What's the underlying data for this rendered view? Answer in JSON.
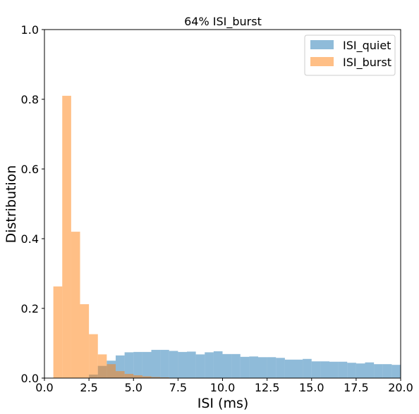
{
  "chart_data": {
    "type": "bar",
    "title": "64% ISI_burst",
    "xlabel": "ISI (ms)",
    "ylabel": "Distribution",
    "xlim": [
      0,
      20
    ],
    "ylim": [
      0,
      1.0
    ],
    "xticks": [
      "0.0",
      "2.5",
      "5.0",
      "7.5",
      "10.0",
      "12.5",
      "15.0",
      "17.5",
      "20.0"
    ],
    "yticks": [
      "0.0",
      "0.2",
      "0.4",
      "0.6",
      "0.8",
      "1.0"
    ],
    "grid": false,
    "legend_position": "top-right",
    "series": [
      {
        "name": "ISI_quiet",
        "color": "#1f77b4",
        "alpha": 0.5,
        "bin_width": 0.5,
        "bins": [
          {
            "x0": 2.5,
            "value": 0.01
          },
          {
            "x0": 3.0,
            "value": 0.035
          },
          {
            "x0": 3.5,
            "value": 0.05
          },
          {
            "x0": 4.0,
            "value": 0.065
          },
          {
            "x0": 4.5,
            "value": 0.074
          },
          {
            "x0": 5.0,
            "value": 0.075
          },
          {
            "x0": 5.5,
            "value": 0.075
          },
          {
            "x0": 6.0,
            "value": 0.081
          },
          {
            "x0": 6.5,
            "value": 0.081
          },
          {
            "x0": 7.0,
            "value": 0.078
          },
          {
            "x0": 7.5,
            "value": 0.075
          },
          {
            "x0": 8.0,
            "value": 0.076
          },
          {
            "x0": 8.5,
            "value": 0.068
          },
          {
            "x0": 9.0,
            "value": 0.074
          },
          {
            "x0": 9.5,
            "value": 0.077
          },
          {
            "x0": 10.0,
            "value": 0.069
          },
          {
            "x0": 10.5,
            "value": 0.069
          },
          {
            "x0": 11.0,
            "value": 0.061
          },
          {
            "x0": 11.5,
            "value": 0.062
          },
          {
            "x0": 12.0,
            "value": 0.06
          },
          {
            "x0": 12.5,
            "value": 0.06
          },
          {
            "x0": 13.0,
            "value": 0.058
          },
          {
            "x0": 13.5,
            "value": 0.053
          },
          {
            "x0": 14.0,
            "value": 0.053
          },
          {
            "x0": 14.5,
            "value": 0.055
          },
          {
            "x0": 15.0,
            "value": 0.048
          },
          {
            "x0": 15.5,
            "value": 0.048
          },
          {
            "x0": 16.0,
            "value": 0.047
          },
          {
            "x0": 16.5,
            "value": 0.047
          },
          {
            "x0": 17.0,
            "value": 0.044
          },
          {
            "x0": 17.5,
            "value": 0.042
          },
          {
            "x0": 18.0,
            "value": 0.045
          },
          {
            "x0": 18.5,
            "value": 0.04
          },
          {
            "x0": 19.0,
            "value": 0.04
          },
          {
            "x0": 19.5,
            "value": 0.038
          }
        ]
      },
      {
        "name": "ISI_burst",
        "color": "#ff7f0e",
        "alpha": 0.5,
        "bin_width": 0.5,
        "bins": [
          {
            "x0": 0.5,
            "value": 0.263
          },
          {
            "x0": 1.0,
            "value": 0.81
          },
          {
            "x0": 1.5,
            "value": 0.42
          },
          {
            "x0": 2.0,
            "value": 0.212
          },
          {
            "x0": 2.5,
            "value": 0.126
          },
          {
            "x0": 3.0,
            "value": 0.068
          },
          {
            "x0": 3.5,
            "value": 0.04
          },
          {
            "x0": 4.0,
            "value": 0.02
          },
          {
            "x0": 4.5,
            "value": 0.012
          },
          {
            "x0": 5.0,
            "value": 0.008
          },
          {
            "x0": 5.5,
            "value": 0.005
          },
          {
            "x0": 6.0,
            "value": 0.003
          },
          {
            "x0": 6.5,
            "value": 0.002
          }
        ]
      }
    ]
  }
}
